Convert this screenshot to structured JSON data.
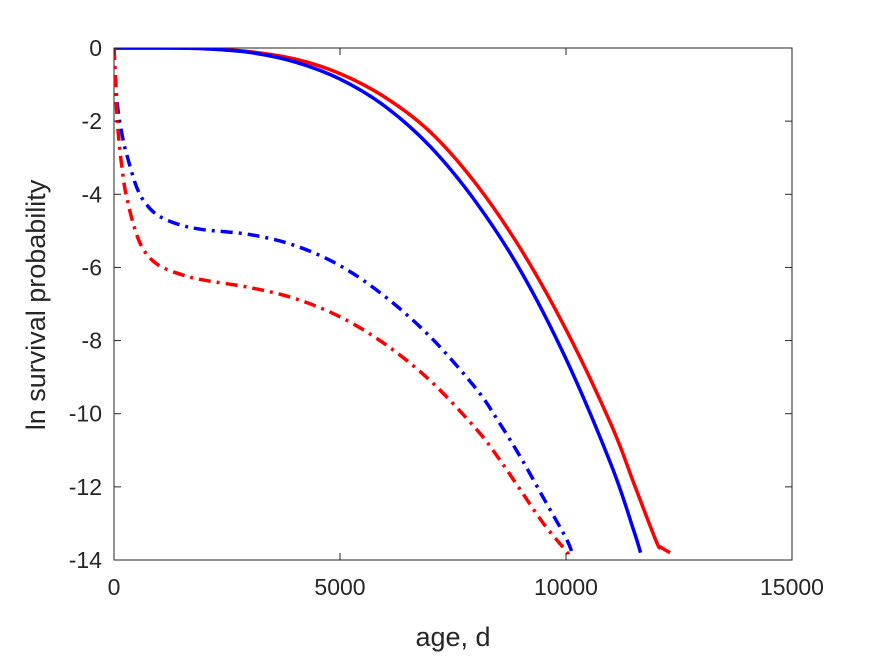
{
  "chart_data": {
    "type": "line",
    "title": "",
    "xlabel": "age, d",
    "ylabel": "ln survival probability",
    "xlim": [
      0,
      15000
    ],
    "ylim": [
      -14,
      0
    ],
    "xticks": [
      0,
      5000,
      10000,
      15000
    ],
    "yticks": [
      0,
      -2,
      -4,
      -6,
      -8,
      -10,
      -12,
      -14
    ],
    "xtick_labels": [
      "0",
      "5000",
      "10000",
      "15000"
    ],
    "ytick_labels": [
      "0",
      "-2",
      "-4",
      "-6",
      "-8",
      "-10",
      "-12",
      "-14"
    ],
    "grid": false,
    "legend": "none",
    "series": [
      {
        "color": "#ff0000",
        "style": "solid",
        "x": [
          0,
          1000,
          2000,
          3000,
          4000,
          5000,
          6000,
          7000,
          8000,
          9000,
          10000,
          11000,
          11500,
          12000,
          12100,
          12300
        ],
        "y": [
          0,
          0,
          -0.02,
          -0.1,
          -0.3,
          -0.7,
          -1.35,
          -2.3,
          -3.7,
          -5.5,
          -7.7,
          -10.3,
          -11.9,
          -13.5,
          -13.65,
          -13.8
        ]
      },
      {
        "color": "#0000ff",
        "style": "solid",
        "x": [
          0,
          1000,
          2000,
          3000,
          4000,
          5000,
          6000,
          7000,
          8000,
          9000,
          10000,
          11000,
          11500,
          11650
        ],
        "y": [
          0,
          0,
          -0.02,
          -0.12,
          -0.38,
          -0.85,
          -1.6,
          -2.7,
          -4.2,
          -6.1,
          -8.5,
          -11.4,
          -13.2,
          -13.8
        ]
      },
      {
        "color": "#0000ff",
        "style": "dashdot",
        "x": [
          0,
          50,
          100,
          200,
          300,
          500,
          700,
          1000,
          1500,
          2000,
          3000,
          4000,
          5000,
          6000,
          7000,
          8000,
          8500,
          9000,
          9500,
          10000,
          10150
        ],
        "y": [
          0,
          -1.2,
          -1.8,
          -2.5,
          -3.0,
          -3.8,
          -4.25,
          -4.6,
          -4.85,
          -4.97,
          -5.1,
          -5.4,
          -5.95,
          -6.8,
          -7.9,
          -9.3,
          -10.2,
          -11.2,
          -12.3,
          -13.4,
          -13.85
        ]
      },
      {
        "color": "#ff0000",
        "style": "dashdot",
        "x": [
          0,
          50,
          100,
          200,
          300,
          500,
          700,
          1000,
          1500,
          2000,
          3000,
          4000,
          5000,
          6000,
          7000,
          8000,
          8500,
          9000,
          9500,
          10000,
          10050
        ],
        "y": [
          0,
          -1.5,
          -2.4,
          -3.5,
          -4.2,
          -5.1,
          -5.6,
          -5.95,
          -6.2,
          -6.35,
          -6.55,
          -6.85,
          -7.35,
          -8.1,
          -9.1,
          -10.4,
          -11.2,
          -12.1,
          -13.0,
          -13.75,
          -13.85
        ]
      }
    ]
  }
}
